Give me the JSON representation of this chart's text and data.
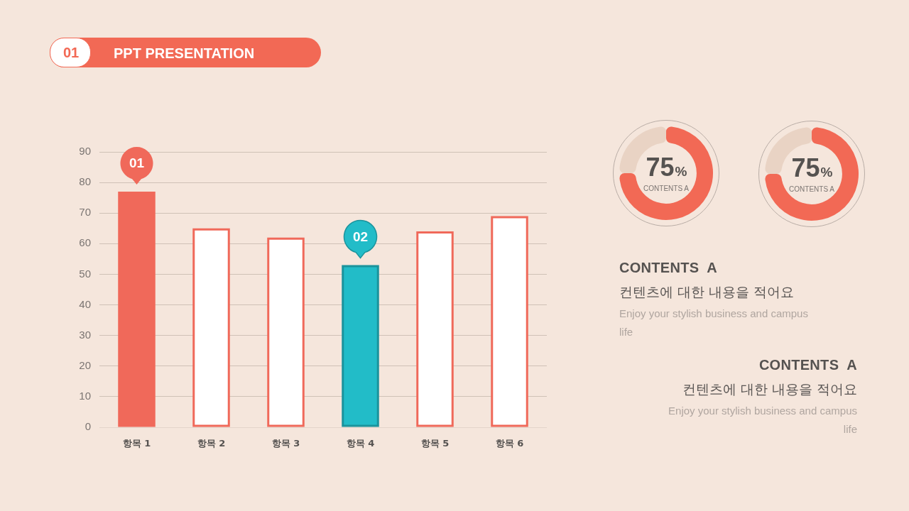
{
  "chart_data": [
    {
      "type": "other",
      "title": "PPT PRESENTATION",
      "annotations": [
        "01"
      ]
    },
    {
      "type": "bar",
      "categories": [
        "항목 1",
        "항목 2",
        "항목 3",
        "항목 4",
        "항목 5",
        "항목 6"
      ],
      "values": [
        77,
        65,
        62,
        53,
        64,
        69
      ],
      "color": "#f0695a",
      "colors": [
        "#f0695a",
        "#ffffff",
        "#ffffff",
        "#22bcc8",
        "#ffffff",
        "#ffffff"
      ],
      "ylim": [
        0,
        90
      ],
      "yticks": [
        0,
        10,
        20,
        30,
        40,
        50,
        60,
        70,
        80,
        90
      ],
      "grid": "y",
      "annotations": [
        {
          "text": "01",
          "x": "항목 1",
          "y": 77
        },
        {
          "text": "02",
          "x": "항목 4",
          "y": 53
        }
      ]
    },
    {
      "type": "donut",
      "categories": [
        "CONTENTS A",
        null
      ],
      "values": [
        75,
        25
      ],
      "colors": [
        "#f26955",
        "#e9d3c4"
      ],
      "value_labels": [
        "75%",
        null
      ]
    },
    {
      "type": "donut",
      "categories": [
        "CONTENTS A",
        null
      ],
      "values": [
        75,
        25
      ],
      "colors": [
        "#f26955",
        "#e9d3c4"
      ],
      "value_labels": [
        "75%",
        null
      ]
    },
    {
      "type": "other",
      "title": "CONTENTS  A",
      "subtitle": "컨텐츠에 대한 내용을 적어요",
      "annotations": [
        "Enjoy your stylish business and campus life"
      ]
    },
    {
      "type": "other",
      "title": "CONTENTS  A",
      "subtitle": "컨텐츠에 대한 내용을 적어요",
      "annotations": [
        "Enjoy your stylish business and campus life"
      ]
    }
  ]
}
